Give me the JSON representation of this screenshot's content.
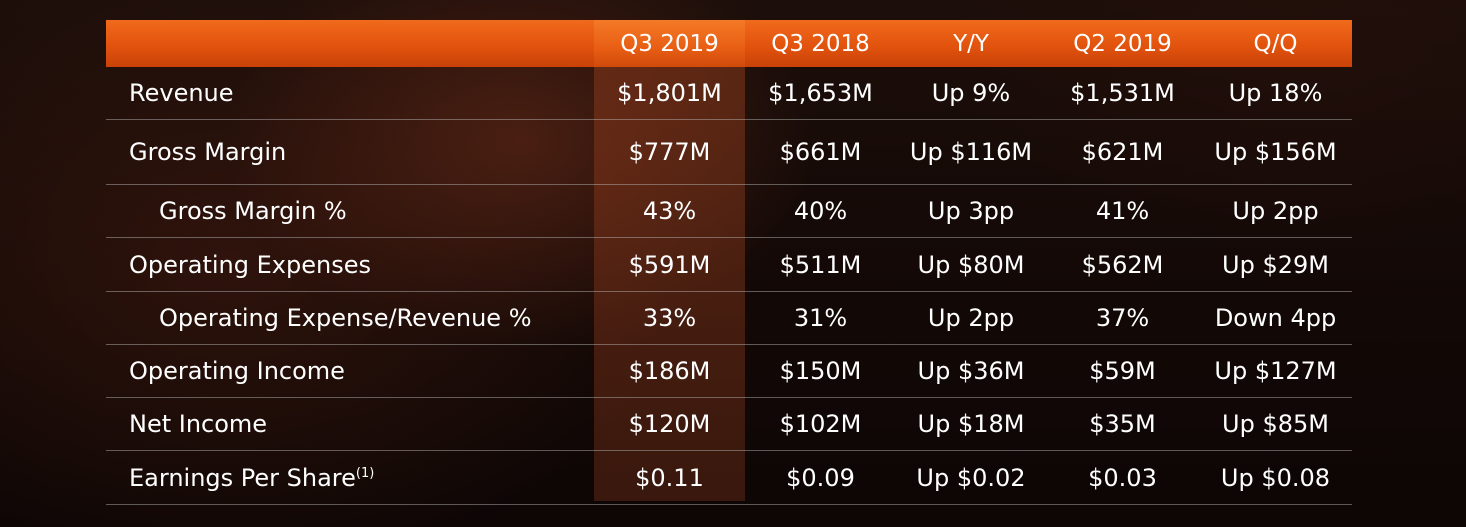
{
  "table": {
    "headers": [
      "",
      "Q3 2019",
      "Q3 2018",
      "Y/Y",
      "Q2 2019",
      "Q/Q"
    ],
    "rows": [
      {
        "label": "Revenue",
        "cells": [
          "$1,801M",
          "$1,653M",
          "Up 9%",
          "$1,531M",
          "Up 18%"
        ]
      },
      {
        "label": "Gross Margin",
        "cells": [
          "$777M",
          "$661M",
          "Up $116M",
          "$621M",
          "Up $156M"
        ]
      },
      {
        "label": "Gross Margin %",
        "cells": [
          "43%",
          "40%",
          "Up 3pp",
          "41%",
          "Up 2pp"
        ]
      },
      {
        "label": "Operating Expenses",
        "cells": [
          "$591M",
          "$511M",
          "Up $80M",
          "$562M",
          "Up $29M"
        ]
      },
      {
        "label": "Operating Expense/Revenue %",
        "cells": [
          "33%",
          "31%",
          "Up 2pp",
          "37%",
          "Down 4pp"
        ]
      },
      {
        "label": "Operating Income",
        "cells": [
          "$186M",
          "$150M",
          "Up $36M",
          "$59M",
          "Up $127M"
        ]
      },
      {
        "label": "Net Income",
        "cells": [
          "$120M",
          "$102M",
          "Up $18M",
          "$35M",
          "Up $85M"
        ]
      },
      {
        "label": "Earnings Per Share",
        "footnote": "(1)",
        "cells": [
          "$0.11",
          "$0.09",
          "Up $0.02",
          "$0.03",
          "Up $0.08"
        ]
      }
    ]
  },
  "colors": {
    "header_orange": "#e2530e",
    "highlight_column": "#8c3a1c",
    "background": "#120806"
  }
}
